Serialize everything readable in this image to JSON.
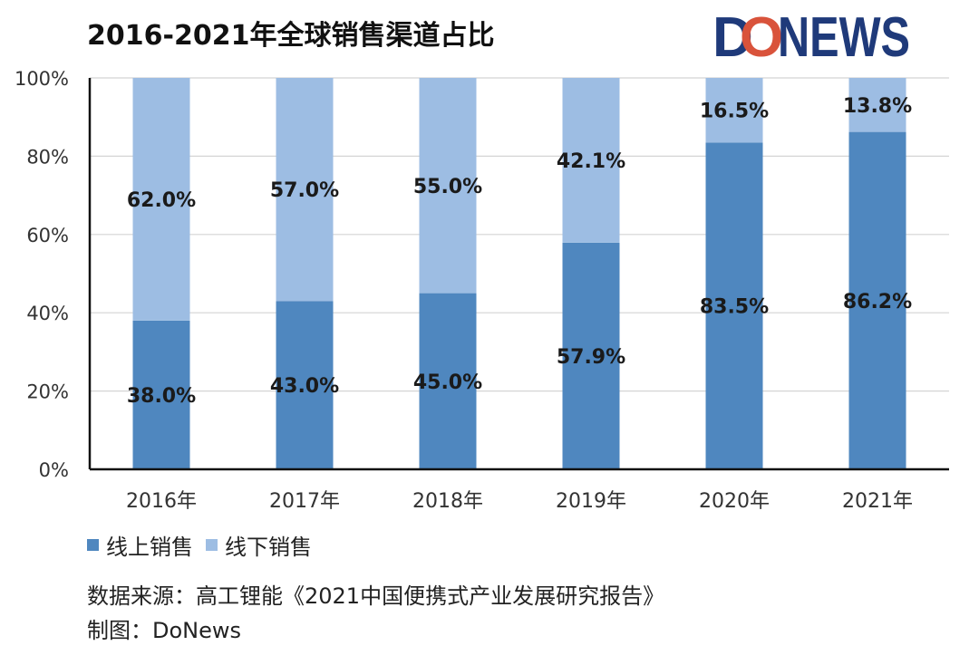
{
  "chart_data": {
    "type": "bar",
    "stacked": true,
    "title": "2016-2021年全球销售渠道占比",
    "categories": [
      "2016年",
      "2017年",
      "2018年",
      "2019年",
      "2020年",
      "2021年"
    ],
    "series": [
      {
        "name": "线上销售",
        "color": "#4f87bf",
        "values": [
          38.0,
          43.0,
          45.0,
          57.9,
          83.5,
          86.2
        ],
        "labels": [
          "38.0%",
          "43.0%",
          "45.0%",
          "57.9%",
          "83.5%",
          "86.2%"
        ]
      },
      {
        "name": "线下销售",
        "color": "#9dbde3",
        "values": [
          62.0,
          57.0,
          55.0,
          42.1,
          16.5,
          13.8
        ],
        "labels": [
          "62.0%",
          "57.0%",
          "55.0%",
          "42.1%",
          "16.5%",
          "13.8%"
        ]
      }
    ],
    "ylim": [
      0,
      100
    ],
    "yticks": [
      0,
      20,
      40,
      60,
      80,
      100
    ],
    "ytick_labels": [
      "0%",
      "20%",
      "40%",
      "60%",
      "80%",
      "100%"
    ],
    "xlabel": "",
    "ylabel": "",
    "grid": true,
    "legend_position": "bottom-left"
  },
  "logo": {
    "text_d": "D",
    "text_o": "O",
    "text_rest": "NEWS",
    "navy": "#1f3a7a",
    "red": "#d9533b"
  },
  "footer": {
    "source": "数据来源：高工锂能《2021中国便携式产业发展研究报告》",
    "credit": "制图：DoNews"
  }
}
